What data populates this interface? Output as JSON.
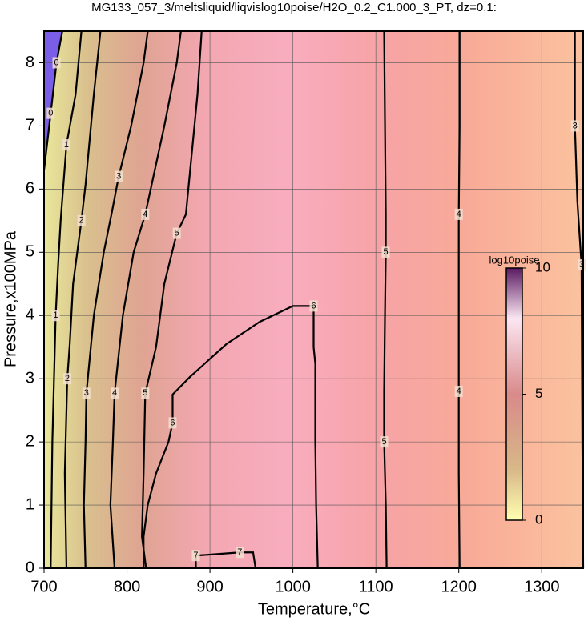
{
  "chart_data": {
    "type": "contour",
    "title": "MG133_057_3/meltsliquid/liqvislog10poise/H2O_0.2_C1.000_3_PT, dz=0.1:",
    "x_label": "Temperature,°C",
    "y_label": "Pressure,x100MPa",
    "xlim": [
      700,
      1350
    ],
    "ylim": [
      0,
      8.5
    ],
    "xticks": [
      700,
      800,
      900,
      1000,
      1100,
      1200,
      1300
    ],
    "yticks": [
      0,
      1,
      2,
      3,
      4,
      5,
      6,
      7,
      8
    ],
    "grid": true,
    "contours": [
      {
        "level": 0,
        "x": [
          700,
          708,
          715,
          722
        ],
        "y": [
          6.3,
          7.2,
          8,
          8.5
        ]
      },
      {
        "level": 1,
        "x": [
          708,
          710,
          714,
          717,
          720,
          727,
          738,
          745
        ],
        "y": [
          0,
          2,
          4,
          4.8,
          5.5,
          6.7,
          7.5,
          8.5
        ]
      },
      {
        "level": 2,
        "x": [
          727,
          725,
          728,
          731,
          735,
          745,
          750,
          760,
          768
        ],
        "y": [
          0,
          1.5,
          3,
          3.55,
          4.5,
          5.5,
          6.07,
          7.5,
          8.5
        ]
      },
      {
        "level": 3,
        "x": [
          750,
          748,
          750,
          751,
          760,
          772,
          782,
          790,
          805,
          820,
          825
        ],
        "y": [
          0,
          1,
          2,
          2.77,
          4,
          5,
          5.65,
          6.2,
          7,
          8,
          8.5
        ]
      },
      {
        "level": 4,
        "x": [
          785,
          780,
          783,
          785,
          795,
          808,
          822,
          845,
          860,
          865
        ],
        "y": [
          0,
          1,
          2,
          2.77,
          4,
          5,
          5.6,
          7,
          8,
          8.5
        ]
      },
      {
        "level": 5,
        "x": [
          823,
          818,
          820,
          822,
          835,
          845,
          860,
          871,
          885,
          890
        ],
        "y": [
          0,
          0.5,
          1.5,
          2.77,
          3.5,
          4.5,
          5.3,
          5.6,
          7.5,
          8.5
        ]
      },
      {
        "level": 6,
        "x": [
          820,
          820,
          825,
          835,
          850,
          855,
          855,
          876,
          920,
          960,
          1000,
          1025,
          1025,
          1027,
          1027,
          1028,
          1030
        ],
        "y": [
          0,
          0.5,
          1,
          1.5,
          2,
          2.3,
          2.75,
          3.03,
          3.55,
          3.9,
          4.15,
          4.15,
          3.5,
          3.24,
          2,
          1,
          0
        ]
      },
      {
        "level": 7,
        "x": [
          883,
          883,
          905,
          936,
          952,
          955
        ],
        "y": [
          0,
          0.2,
          0.22,
          0.25,
          0.25,
          0
        ]
      },
      {
        "level": 5,
        "x": [
          1113,
          1112,
          1110,
          1110,
          1111,
          1112,
          1112,
          1110
        ],
        "y": [
          0,
          1,
          2,
          2.8,
          4,
          5,
          5.6,
          8.5
        ]
      },
      {
        "level": 4,
        "x": [
          1201,
          1200,
          1200,
          1200,
          1200,
          1201,
          1201
        ],
        "y": [
          0,
          1.5,
          2.8,
          4,
          5.6,
          7,
          8.5
        ]
      },
      {
        "level": 3,
        "x": [
          1350,
          1349,
          1348,
          1343,
          1340,
          1340,
          1340
        ],
        "y": [
          0,
          2,
          4.8,
          5.8,
          7,
          7.15,
          8.5
        ]
      }
    ],
    "colorbar": {
      "label": "log10poise",
      "lim": [
        0,
        10
      ],
      "ticks": [
        0,
        5,
        10
      ]
    }
  }
}
